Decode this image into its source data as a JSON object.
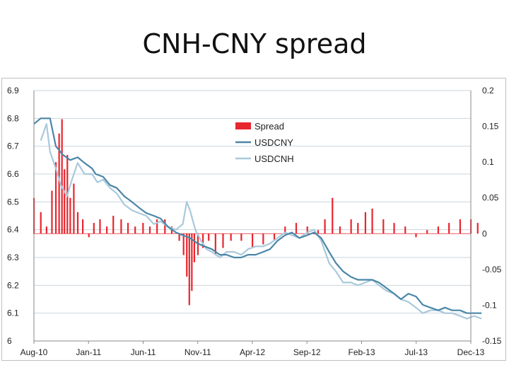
{
  "title": "CNH-CNY spread",
  "chart_data": {
    "type": "bar+line",
    "title": "CNH-CNY spread",
    "x_tick_labels": [
      "Aug-10",
      "Jan-11",
      "Jun-11",
      "Nov-11",
      "Apr-12",
      "Sep-12",
      "Feb-13",
      "Jul-13",
      "Dec-13"
    ],
    "x_range": [
      "2010-08",
      "2013-12"
    ],
    "left_axis": {
      "ylim": [
        6.0,
        6.9
      ],
      "ticks": [
        "6",
        "6.1",
        "6.2",
        "6.3",
        "6.4",
        "6.5",
        "6.6",
        "6.7",
        "6.8",
        "6.9"
      ]
    },
    "right_axis": {
      "ylim": [
        -0.15,
        0.2
      ],
      "ticks": [
        "-0.15",
        "-0.1",
        "-0.05",
        "0",
        "0.05",
        "0.1",
        "0.15",
        "0.2"
      ]
    },
    "grid": "horizontal",
    "legend_position": "upper-center",
    "series": [
      {
        "name": "Spread",
        "type": "bar",
        "axis": "right",
        "color": "#e8262e",
        "x": [
          "2010-08-01",
          "2010-08-20",
          "2010-09-05",
          "2010-09-20",
          "2010-10-01",
          "2010-10-10",
          "2010-10-18",
          "2010-10-25",
          "2010-11-02",
          "2010-11-10",
          "2010-11-20",
          "2010-12-01",
          "2010-12-15",
          "2011-01-01",
          "2011-01-15",
          "2011-02-01",
          "2011-02-20",
          "2011-03-10",
          "2011-04-01",
          "2011-04-20",
          "2011-05-10",
          "2011-06-01",
          "2011-06-20",
          "2011-07-10",
          "2011-08-01",
          "2011-08-20",
          "2011-09-10",
          "2011-09-22",
          "2011-10-01",
          "2011-10-08",
          "2011-10-15",
          "2011-10-22",
          "2011-11-01",
          "2011-11-15",
          "2011-12-01",
          "2011-12-20",
          "2012-01-10",
          "2012-02-01",
          "2012-03-01",
          "2012-04-01",
          "2012-05-01",
          "2012-06-01",
          "2012-07-01",
          "2012-08-01",
          "2012-09-01",
          "2012-09-20",
          "2012-10-01",
          "2012-10-20",
          "2012-11-10",
          "2012-12-01",
          "2013-01-01",
          "2013-01-20",
          "2013-02-10",
          "2013-03-01",
          "2013-04-01",
          "2013-05-01",
          "2013-06-01",
          "2013-07-01",
          "2013-08-01",
          "2013-09-01",
          "2013-10-01",
          "2013-11-01",
          "2013-12-01",
          "2013-12-20"
        ],
        "values": [
          0.05,
          0.03,
          0.01,
          0.06,
          0.1,
          0.14,
          0.16,
          0.09,
          0.11,
          0.05,
          0.07,
          0.03,
          0.02,
          -0.005,
          0.015,
          0.02,
          0.01,
          0.025,
          0.02,
          0.015,
          0.01,
          0.015,
          0.01,
          0.02,
          0.02,
          0.01,
          -0.01,
          -0.03,
          -0.06,
          -0.1,
          -0.08,
          -0.04,
          -0.03,
          -0.02,
          -0.01,
          -0.03,
          -0.02,
          -0.01,
          -0.01,
          -0.02,
          -0.015,
          -0.01,
          0.01,
          0.015,
          0.01,
          0.0,
          0.005,
          0.02,
          0.05,
          0.01,
          0.02,
          0.015,
          0.03,
          0.035,
          0.02,
          0.015,
          0.01,
          -0.005,
          0.005,
          0.01,
          0.015,
          0.02,
          0.02,
          0.015
        ]
      },
      {
        "name": "USDCNY",
        "type": "line",
        "axis": "left",
        "color": "#4a86a8",
        "x": [
          "2010-08-01",
          "2010-08-20",
          "2010-09-15",
          "2010-10-01",
          "2010-10-20",
          "2010-11-10",
          "2010-12-01",
          "2010-12-20",
          "2011-01-10",
          "2011-01-20",
          "2011-02-10",
          "2011-03-01",
          "2011-03-20",
          "2011-04-10",
          "2011-05-01",
          "2011-05-20",
          "2011-06-10",
          "2011-07-01",
          "2011-07-20",
          "2011-08-10",
          "2011-09-01",
          "2011-09-20",
          "2011-10-10",
          "2011-11-01",
          "2011-11-20",
          "2011-12-10",
          "2012-01-01",
          "2012-01-20",
          "2012-02-10",
          "2012-03-01",
          "2012-03-20",
          "2012-04-10",
          "2012-05-01",
          "2012-05-20",
          "2012-06-10",
          "2012-07-01",
          "2012-07-20",
          "2012-08-10",
          "2012-09-01",
          "2012-09-20",
          "2012-10-10",
          "2012-11-01",
          "2012-11-20",
          "2012-12-10",
          "2013-01-01",
          "2013-01-20",
          "2013-02-10",
          "2013-03-01",
          "2013-03-20",
          "2013-04-10",
          "2013-05-01",
          "2013-05-20",
          "2013-06-10",
          "2013-07-01",
          "2013-07-20",
          "2013-08-10",
          "2013-09-01",
          "2013-09-20",
          "2013-10-10",
          "2013-11-01",
          "2013-11-20",
          "2013-12-10",
          "2013-12-31"
        ],
        "values": [
          6.78,
          6.8,
          6.8,
          6.7,
          6.67,
          6.65,
          6.66,
          6.64,
          6.62,
          6.6,
          6.59,
          6.56,
          6.55,
          6.52,
          6.5,
          6.48,
          6.46,
          6.45,
          6.44,
          6.41,
          6.39,
          6.38,
          6.37,
          6.35,
          6.34,
          6.33,
          6.31,
          6.31,
          6.3,
          6.3,
          6.31,
          6.31,
          6.32,
          6.33,
          6.36,
          6.38,
          6.39,
          6.37,
          6.38,
          6.39,
          6.37,
          6.32,
          6.28,
          6.25,
          6.23,
          6.22,
          6.22,
          6.22,
          6.21,
          6.19,
          6.17,
          6.15,
          6.17,
          6.16,
          6.13,
          6.12,
          6.11,
          6.12,
          6.11,
          6.11,
          6.1,
          6.1,
          6.1
        ]
      },
      {
        "name": "USDCNH",
        "type": "line",
        "axis": "left",
        "color": "#a9c9dc",
        "x": [
          "2010-08-20",
          "2010-09-05",
          "2010-09-15",
          "2010-10-01",
          "2010-10-15",
          "2010-11-01",
          "2010-11-15",
          "2010-12-01",
          "2010-12-20",
          "2011-01-10",
          "2011-01-25",
          "2011-02-10",
          "2011-03-01",
          "2011-03-20",
          "2011-04-10",
          "2011-05-01",
          "2011-05-20",
          "2011-06-10",
          "2011-07-01",
          "2011-07-20",
          "2011-08-10",
          "2011-09-01",
          "2011-09-20",
          "2011-10-01",
          "2011-10-10",
          "2011-10-25",
          "2011-11-10",
          "2011-11-25",
          "2011-12-10",
          "2012-01-01",
          "2012-01-20",
          "2012-02-10",
          "2012-03-01",
          "2012-03-20",
          "2012-04-10",
          "2012-05-01",
          "2012-05-20",
          "2012-06-10",
          "2012-07-01",
          "2012-07-20",
          "2012-08-10",
          "2012-09-01",
          "2012-09-20",
          "2012-10-10",
          "2012-11-01",
          "2012-11-20",
          "2012-12-10",
          "2013-01-01",
          "2013-01-20",
          "2013-02-10",
          "2013-03-01",
          "2013-03-20",
          "2013-04-10",
          "2013-05-01",
          "2013-05-20",
          "2013-06-10",
          "2013-07-01",
          "2013-07-20",
          "2013-08-10",
          "2013-09-01",
          "2013-09-20",
          "2013-10-10",
          "2013-11-01",
          "2013-11-20",
          "2013-12-10",
          "2013-12-31"
        ],
        "values": [
          6.72,
          6.78,
          6.68,
          6.62,
          6.56,
          6.52,
          6.58,
          6.64,
          6.6,
          6.6,
          6.57,
          6.58,
          6.55,
          6.53,
          6.49,
          6.47,
          6.46,
          6.45,
          6.42,
          6.43,
          6.41,
          6.4,
          6.42,
          6.5,
          6.47,
          6.4,
          6.36,
          6.33,
          6.32,
          6.3,
          6.32,
          6.32,
          6.31,
          6.33,
          6.34,
          6.34,
          6.35,
          6.37,
          6.39,
          6.38,
          6.37,
          6.39,
          6.4,
          6.36,
          6.28,
          6.25,
          6.21,
          6.21,
          6.2,
          6.21,
          6.22,
          6.2,
          6.18,
          6.17,
          6.15,
          6.14,
          6.12,
          6.1,
          6.11,
          6.11,
          6.1,
          6.1,
          6.09,
          6.08,
          6.09,
          6.08
        ]
      }
    ]
  }
}
